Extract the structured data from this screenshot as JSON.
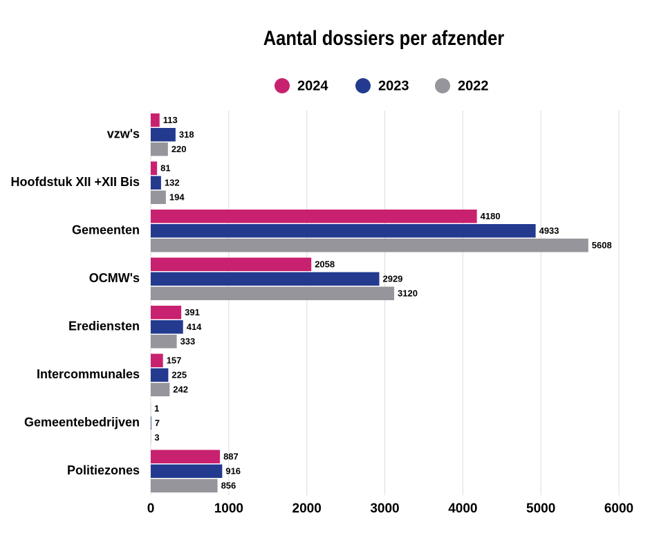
{
  "chart_data": {
    "type": "bar",
    "title": "Aantal dossiers per afzender",
    "categories": [
      "vzw's",
      "Hoofdstuk XII +XII Bis",
      "Gemeenten",
      "OCMW's",
      "Erediensten",
      "Intercommunales",
      "Gemeentebedrijven",
      "Politiezones"
    ],
    "series": [
      {
        "name": "2024",
        "color": "#c8216f",
        "values": [
          113,
          81,
          4180,
          2058,
          391,
          157,
          1,
          887
        ]
      },
      {
        "name": "2023",
        "color": "#233a8f",
        "values": [
          318,
          132,
          4933,
          2929,
          414,
          225,
          7,
          916
        ]
      },
      {
        "name": "2022",
        "color": "#96959b",
        "values": [
          220,
          194,
          5608,
          3120,
          333,
          242,
          3,
          856
        ]
      }
    ],
    "xlim": [
      0,
      6000
    ],
    "xticks": [
      0,
      1000,
      2000,
      3000,
      4000,
      5000,
      6000
    ],
    "grid": true,
    "legend": "top"
  }
}
